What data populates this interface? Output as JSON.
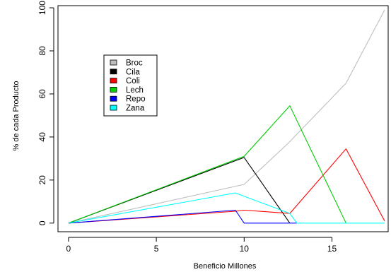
{
  "chart_data": {
    "type": "line",
    "title": "",
    "xlabel": "Beneficio Millones",
    "ylabel": "% de cada Producto",
    "xlim": [
      -0.6,
      18.2
    ],
    "ylim": [
      -4,
      101
    ],
    "x_ticks": [
      0,
      5,
      10,
      15
    ],
    "y_ticks": [
      0,
      20,
      40,
      60,
      80,
      100
    ],
    "grid": false,
    "legend_position": "top-left",
    "series": [
      {
        "name": "Broc",
        "color": "#bebebe",
        "points": [
          [
            0,
            0
          ],
          [
            10,
            18
          ],
          [
            12.5,
            37
          ],
          [
            15.8,
            65
          ],
          [
            18,
            99
          ]
        ]
      },
      {
        "name": "Cila",
        "color": "#000000",
        "points": [
          [
            0,
            0
          ],
          [
            10,
            30.5
          ],
          [
            12.6,
            0
          ]
        ]
      },
      {
        "name": "Coli",
        "color": "#ff0000",
        "points": [
          [
            0,
            0
          ],
          [
            9.5,
            5.5
          ],
          [
            10,
            6
          ],
          [
            12.6,
            4.5
          ],
          [
            15.8,
            34.5
          ],
          [
            18,
            1
          ]
        ]
      },
      {
        "name": "Lech",
        "color": "#00cd00",
        "points": [
          [
            0,
            0
          ],
          [
            10,
            31
          ],
          [
            12.6,
            54.5
          ],
          [
            15.8,
            0
          ]
        ]
      },
      {
        "name": "Repo",
        "color": "#0000ff",
        "points": [
          [
            0,
            0
          ],
          [
            9.5,
            6
          ],
          [
            10,
            0
          ],
          [
            13,
            0
          ]
        ]
      },
      {
        "name": "Zana",
        "color": "#00ffff",
        "points": [
          [
            0,
            0
          ],
          [
            9.5,
            14
          ],
          [
            12.6,
            4.5
          ],
          [
            13,
            0
          ],
          [
            18,
            0
          ]
        ]
      }
    ]
  }
}
